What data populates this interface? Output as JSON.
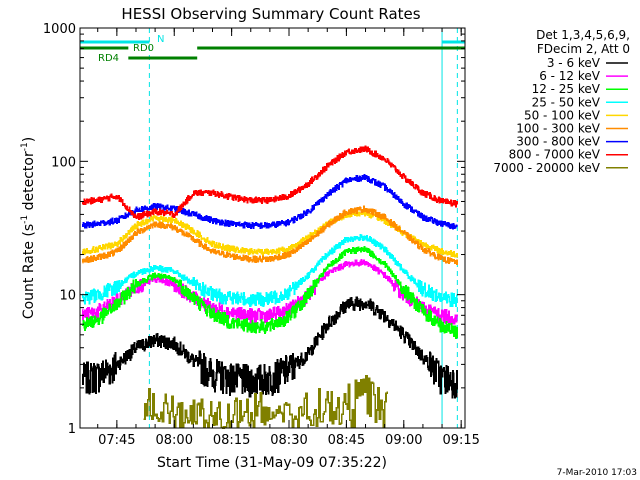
{
  "chart_data": {
    "type": "line",
    "title": "HESSI Observing Summary Count Rates",
    "xlabel": "Start Time (31-May-09 07:35:22)",
    "ylabel": "Count Rate (s⁻¹ detector⁻¹)",
    "ylabel_main": "Count Rate (s",
    "ylabel_sup1": "-1",
    "ylabel_mid": " detector",
    "ylabel_sup2": "-1",
    "ylabel_end": ")",
    "yscale": "log",
    "xlim": [
      "07:35:22",
      "09:16:00"
    ],
    "ylim": [
      1,
      1000
    ],
    "x_ticks": [
      "07:45",
      "08:00",
      "08:15",
      "08:30",
      "08:45",
      "09:00",
      "09:15"
    ],
    "y_ticks": [
      "1",
      "10",
      "100",
      "1000"
    ],
    "footer": "7-Mar-2010 17:03",
    "legend_header": [
      "Det 1,3,4,5,6,9,",
      "FDecim 2, Att 0"
    ],
    "legend_position": "right",
    "markers": {
      "vlines_solid": [
        "07:35:22",
        "09:10:00"
      ],
      "vlines_dashed": [
        "07:53:30",
        "09:14:00"
      ],
      "colors": {
        "vline": "#00e5e5",
        "bar": "#008000"
      },
      "bars": [
        {
          "label": "N",
          "color": "#00e5e5",
          "segments": [
            [
              "07:35:22",
              "07:53:30"
            ],
            [
              "09:10:00",
              "09:16:00"
            ]
          ],
          "level": 1
        },
        {
          "label": "RD0",
          "color": "#008000",
          "segments": [
            [
              "07:35:22",
              "07:48:00"
            ],
            [
              "08:06:00",
              "09:16:00"
            ]
          ],
          "level": 2
        },
        {
          "label": "RD4",
          "color": "#008000",
          "segments": [
            [
              "07:48:00",
              "08:06:00"
            ]
          ],
          "level": 3
        }
      ]
    },
    "series": [
      {
        "name": "3 - 6 keV",
        "color": "#000000",
        "x": [
          "07:36",
          "07:40",
          "07:45",
          "07:50",
          "07:55",
          "08:00",
          "08:05",
          "08:10",
          "08:15",
          "08:20",
          "08:25",
          "08:30",
          "08:35",
          "08:40",
          "08:45",
          "08:50",
          "08:55",
          "09:00",
          "09:05",
          "09:10",
          "09:14"
        ],
        "values": [
          2.4,
          2.5,
          3.0,
          4.0,
          4.6,
          4.3,
          3.2,
          2.6,
          2.4,
          2.3,
          2.4,
          2.8,
          3.6,
          6.0,
          8.5,
          8.8,
          7.0,
          5.0,
          3.4,
          2.4,
          2.3
        ]
      },
      {
        "name": "6 - 12 keV",
        "color": "#ff00ff",
        "x": [
          "07:36",
          "07:40",
          "07:45",
          "07:50",
          "07:55",
          "08:00",
          "08:05",
          "08:10",
          "08:15",
          "08:20",
          "08:25",
          "08:30",
          "08:35",
          "08:40",
          "08:45",
          "08:50",
          "08:55",
          "09:00",
          "09:05",
          "09:10",
          "09:14"
        ],
        "values": [
          7.0,
          7.5,
          9.0,
          11.5,
          13.0,
          12.0,
          9.5,
          8.0,
          7.3,
          7.0,
          7.0,
          7.8,
          10.0,
          14.5,
          17.0,
          17.5,
          14.0,
          10.0,
          8.0,
          7.0,
          6.6
        ]
      },
      {
        "name": "12 - 25 keV",
        "color": "#00ff00",
        "x": [
          "07:36",
          "07:40",
          "07:45",
          "07:50",
          "07:55",
          "08:00",
          "08:05",
          "08:10",
          "08:15",
          "08:20",
          "08:25",
          "08:30",
          "08:35",
          "08:40",
          "08:45",
          "08:50",
          "08:55",
          "09:00",
          "09:05",
          "09:10",
          "09:14"
        ],
        "values": [
          6.0,
          6.5,
          8.5,
          12.0,
          14.0,
          13.0,
          9.5,
          7.2,
          6.2,
          5.8,
          5.8,
          6.8,
          10.0,
          16.0,
          21.0,
          22.0,
          17.0,
          11.0,
          7.5,
          5.8,
          5.2
        ]
      },
      {
        "name": "25 - 50 keV",
        "color": "#00ffff",
        "x": [
          "07:36",
          "07:40",
          "07:45",
          "07:50",
          "07:55",
          "08:00",
          "08:05",
          "08:10",
          "08:15",
          "08:20",
          "08:25",
          "08:30",
          "08:35",
          "08:40",
          "08:45",
          "08:50",
          "08:55",
          "09:00",
          "09:05",
          "09:10",
          "09:14"
        ],
        "values": [
          9.5,
          10.0,
          11.5,
          14.5,
          16.0,
          15.0,
          12.0,
          10.0,
          9.5,
          9.2,
          9.3,
          10.5,
          14.0,
          20.0,
          26.0,
          27.0,
          22.0,
          15.0,
          11.0,
          9.5,
          9.0
        ]
      },
      {
        "name": "50 - 100 keV",
        "color": "#ffd700",
        "x": [
          "07:36",
          "07:40",
          "07:45",
          "07:50",
          "07:55",
          "08:00",
          "08:05",
          "08:10",
          "08:15",
          "08:20",
          "08:25",
          "08:30",
          "08:35",
          "08:40",
          "08:45",
          "08:50",
          "08:55",
          "09:00",
          "09:05",
          "09:10",
          "09:14"
        ],
        "values": [
          21,
          22,
          24,
          33,
          38,
          36,
          30,
          24,
          22,
          21,
          21,
          22,
          27,
          34,
          40,
          41,
          36,
          29,
          24,
          21,
          20
        ]
      },
      {
        "name": "100 - 300 keV",
        "color": "#ff8c00",
        "x": [
          "07:36",
          "07:40",
          "07:45",
          "07:50",
          "07:55",
          "08:00",
          "08:05",
          "08:10",
          "08:15",
          "08:20",
          "08:25",
          "08:30",
          "08:35",
          "08:40",
          "08:45",
          "08:50",
          "08:55",
          "09:00",
          "09:05",
          "09:10",
          "09:14"
        ],
        "values": [
          18,
          19,
          21,
          29,
          34,
          32,
          26,
          21,
          19.5,
          18.5,
          18.5,
          20,
          25,
          33,
          42,
          44,
          38,
          29,
          22,
          18.5,
          17.5
        ]
      },
      {
        "name": "300 - 800 keV",
        "color": "#0000ff",
        "x": [
          "07:36",
          "07:40",
          "07:45",
          "07:50",
          "07:55",
          "08:00",
          "08:05",
          "08:10",
          "08:15",
          "08:20",
          "08:25",
          "08:30",
          "08:35",
          "08:40",
          "08:45",
          "08:50",
          "08:55",
          "09:00",
          "09:05",
          "09:10",
          "09:14"
        ],
        "values": [
          33,
          34,
          36,
          43,
          46,
          44,
          40,
          36,
          34,
          33,
          33,
          35,
          42,
          56,
          72,
          76,
          64,
          48,
          38,
          34,
          32
        ]
      },
      {
        "name": "800 - 7000 keV",
        "color": "#ff0000",
        "x": [
          "07:36",
          "07:40",
          "07:45",
          "07:50",
          "07:55",
          "08:00",
          "08:05",
          "08:10",
          "08:15",
          "08:20",
          "08:25",
          "08:30",
          "08:35",
          "08:40",
          "08:45",
          "08:50",
          "08:55",
          "09:00",
          "09:05",
          "09:10",
          "09:14"
        ],
        "values": [
          50,
          51,
          55,
          38,
          42,
          40,
          58,
          58,
          54,
          51,
          51,
          55,
          68,
          92,
          118,
          124,
          104,
          76,
          58,
          50,
          48
        ]
      },
      {
        "name": "7000 - 20000 keV",
        "color": "#808000",
        "x": [
          "07:52",
          "07:55",
          "07:58",
          "08:00",
          "08:44",
          "08:47",
          "08:50",
          "08:53",
          "08:56"
        ],
        "values": [
          1.4,
          1.7,
          1.5,
          1.3,
          1.6,
          2.0,
          2.4,
          2.1,
          1.6
        ]
      }
    ]
  }
}
